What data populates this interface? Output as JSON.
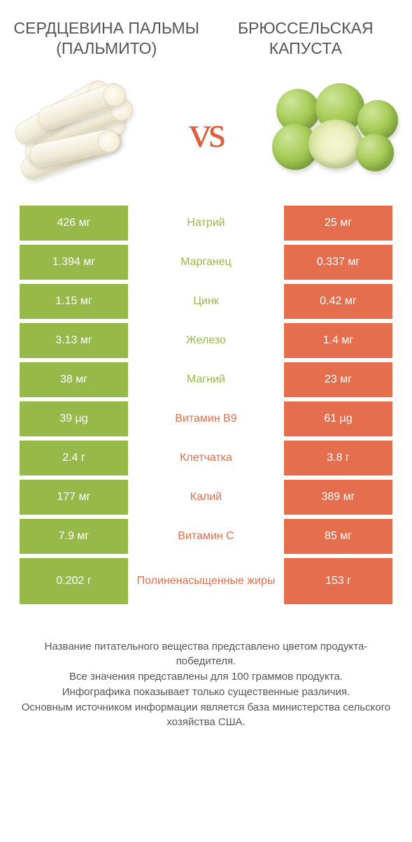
{
  "colors": {
    "green": "#97b94a",
    "orange": "#e46e4d",
    "text": "#555555",
    "vs": "#d8603f",
    "background": "#ffffff",
    "white": "#ffffff"
  },
  "header": {
    "left_title": "СЕРДЦЕВИНА ПАЛЬМЫ (ПАЛЬМИТО)",
    "right_title": "БРЮССЕЛЬСКАЯ КАПУСТА",
    "vs_label": "vs"
  },
  "rows": [
    {
      "left": "426 мг",
      "label": "Натрий",
      "right": "25 мг",
      "winner": "left"
    },
    {
      "left": "1.394 мг",
      "label": "Марганец",
      "right": "0.337 мг",
      "winner": "left"
    },
    {
      "left": "1.15 мг",
      "label": "Цинк",
      "right": "0.42 мг",
      "winner": "left"
    },
    {
      "left": "3.13 мг",
      "label": "Железо",
      "right": "1.4 мг",
      "winner": "left"
    },
    {
      "left": "38 мг",
      "label": "Магний",
      "right": "23 мг",
      "winner": "left"
    },
    {
      "left": "39 µg",
      "label": "Витамин B9",
      "right": "61 µg",
      "winner": "right"
    },
    {
      "left": "2.4 г",
      "label": "Клетчатка",
      "right": "3.8 г",
      "winner": "right"
    },
    {
      "left": "177 мг",
      "label": "Калий",
      "right": "389 мг",
      "winner": "right"
    },
    {
      "left": "7.9 мг",
      "label": "Витамин C",
      "right": "85 мг",
      "winner": "right"
    },
    {
      "left": "0.202 г",
      "label": "Полиненасыщенные жиры",
      "right": "153 г",
      "winner": "right"
    }
  ],
  "footer": {
    "line1": "Название питательного вещества представлено цветом продукта-победителя.",
    "line2": "Все значения представлены для 100 граммов продукта.",
    "line3": "Инфографика показывает только существенные различия.",
    "line4": "Основным источником информации является база министерства сельского хозяйства США."
  }
}
